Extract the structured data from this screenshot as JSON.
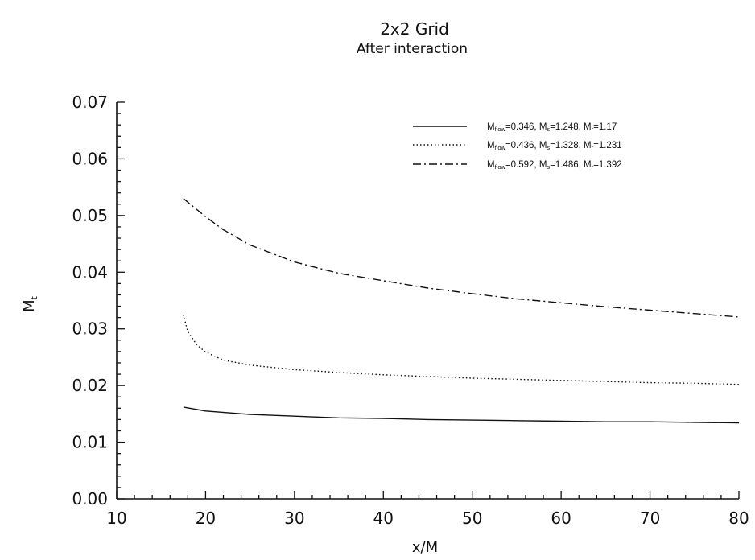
{
  "chart_data": {
    "type": "line",
    "title": "2x2 Grid",
    "subtitle": "After interaction",
    "xlabel": "x/M",
    "ylabel": "Mt",
    "xlim": [
      10,
      80
    ],
    "ylim": [
      0.0,
      0.07
    ],
    "xticks": [
      "10",
      "20",
      "30",
      "40",
      "50",
      "60",
      "70",
      "80"
    ],
    "yticks": [
      "0.00",
      "0.01",
      "0.02",
      "0.03",
      "0.04",
      "0.05",
      "0.06",
      "0.07"
    ],
    "grid": false,
    "legend_position": "top-right",
    "series": [
      {
        "name": "Mflow=0.346, Ms=1.248, Mr=1.17",
        "style": "solid",
        "x": [
          17.5,
          20,
          25,
          30,
          35,
          40,
          45,
          50,
          55,
          60,
          65,
          70,
          75,
          80
        ],
        "y": [
          0.0162,
          0.0155,
          0.0149,
          0.0146,
          0.0143,
          0.0142,
          0.014,
          0.0139,
          0.0138,
          0.0137,
          0.0136,
          0.0136,
          0.0135,
          0.0134
        ]
      },
      {
        "name": "Mflow=0.436, Ms=1.328, Mr=1.231",
        "style": "dotted",
        "x": [
          17.5,
          18,
          19,
          20,
          22,
          25,
          30,
          35,
          40,
          45,
          50,
          55,
          60,
          65,
          70,
          75,
          80
        ],
        "y": [
          0.0325,
          0.0295,
          0.0272,
          0.0259,
          0.0245,
          0.0236,
          0.0228,
          0.0223,
          0.0219,
          0.0216,
          0.0213,
          0.0211,
          0.0209,
          0.0207,
          0.0205,
          0.0204,
          0.0202
        ]
      },
      {
        "name": "Mflow=0.592, Ms=1.486, Mr=1.392",
        "style": "dashdot",
        "x": [
          17.5,
          20,
          22,
          25,
          30,
          35,
          40,
          45,
          50,
          55,
          60,
          65,
          70,
          75,
          80
        ],
        "y": [
          0.053,
          0.0498,
          0.0475,
          0.0448,
          0.0418,
          0.0398,
          0.0385,
          0.0372,
          0.0362,
          0.0353,
          0.0346,
          0.0339,
          0.0333,
          0.0327,
          0.0321
        ]
      }
    ],
    "legend_entries": [
      {
        "main": "M",
        "sub1": "flow",
        "eq1": "=0.346, M",
        "sub2": "s",
        "eq2": "=1.248, M",
        "sub3": "r",
        "eq3": "=1.17"
      },
      {
        "main": "M",
        "sub1": "flow",
        "eq1": "=0.436, M",
        "sub2": "s",
        "eq2": "=1.328, M",
        "sub3": "r",
        "eq3": "=1.231"
      },
      {
        "main": "M",
        "sub1": "flow",
        "eq1": "=0.592, M",
        "sub2": "s",
        "eq2": "=1.486, M",
        "sub3": "r",
        "eq3": "=1.392"
      }
    ],
    "ylabel_parts": {
      "main": "M",
      "sub": "t"
    }
  }
}
